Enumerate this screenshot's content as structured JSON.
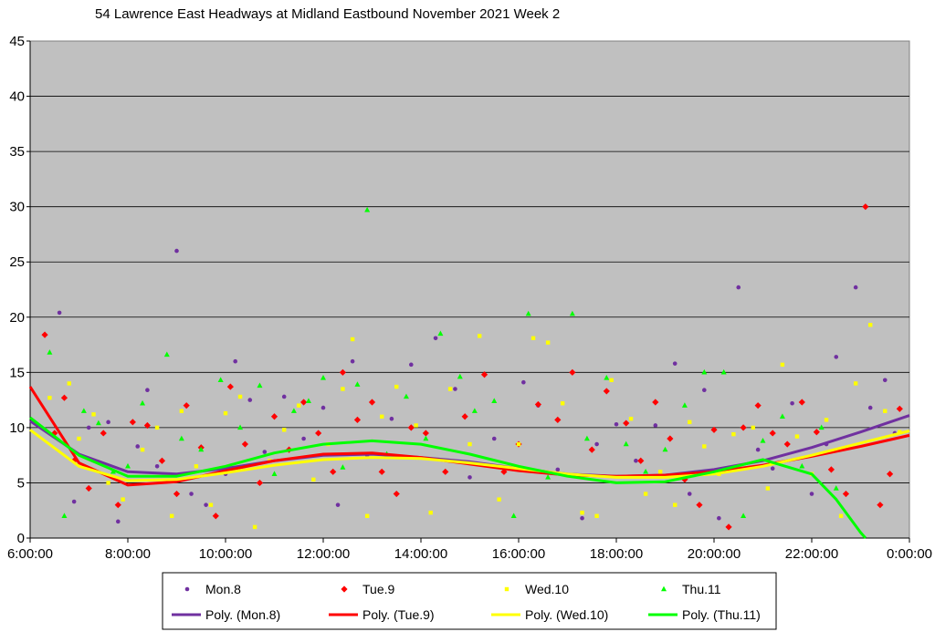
{
  "chart_data": {
    "type": "scatter",
    "title": "54 Lawrence East Headways at Midland Eastbound November 2021  Week 2",
    "xlabel": "",
    "ylabel": "",
    "xlim": [
      6,
      24
    ],
    "ylim": [
      0,
      45
    ],
    "x_ticks": [
      6,
      8,
      10,
      12,
      14,
      16,
      18,
      20,
      22,
      24
    ],
    "x_tick_labels": [
      "6:00:00",
      "8:00:00",
      "10:00:00",
      "12:00:00",
      "14:00:00",
      "16:00:00",
      "18:00:00",
      "20:00:00",
      "22:00:00",
      "0:00:00"
    ],
    "y_ticks": [
      0,
      5,
      10,
      15,
      20,
      25,
      30,
      35,
      40,
      45
    ],
    "y_tick_labels": [
      "0",
      "5",
      "10",
      "15",
      "20",
      "25",
      "30",
      "35",
      "40",
      "45"
    ],
    "grid": true,
    "plot_background": "#C0C0C0",
    "legend_position": "bottom",
    "series": [
      {
        "name": "Mon.8",
        "marker": "circle",
        "color": "#7030A0",
        "points": [
          [
            6.6,
            20.4
          ],
          [
            6.9,
            3.3
          ],
          [
            7.2,
            10.0
          ],
          [
            7.6,
            10.5
          ],
          [
            7.8,
            1.5
          ],
          [
            8.2,
            8.3
          ],
          [
            8.4,
            13.4
          ],
          [
            8.6,
            6.5
          ],
          [
            9.0,
            26.0
          ],
          [
            9.3,
            4.0
          ],
          [
            9.6,
            3.0
          ],
          [
            10.0,
            5.8
          ],
          [
            10.2,
            16.0
          ],
          [
            10.5,
            12.5
          ],
          [
            10.8,
            7.8
          ],
          [
            11.2,
            12.8
          ],
          [
            11.6,
            9.0
          ],
          [
            12.0,
            11.8
          ],
          [
            12.3,
            3.0
          ],
          [
            12.6,
            16.0
          ],
          [
            12.9,
            7.5
          ],
          [
            13.4,
            10.8
          ],
          [
            13.8,
            15.7
          ],
          [
            14.3,
            18.1
          ],
          [
            14.7,
            13.5
          ],
          [
            15.0,
            5.5
          ],
          [
            15.5,
            9.0
          ],
          [
            16.1,
            14.1
          ],
          [
            16.4,
            12.0
          ],
          [
            16.8,
            6.2
          ],
          [
            17.3,
            1.8
          ],
          [
            17.6,
            8.5
          ],
          [
            18.0,
            10.3
          ],
          [
            18.4,
            7.0
          ],
          [
            18.8,
            10.2
          ],
          [
            19.2,
            15.8
          ],
          [
            19.5,
            4.0
          ],
          [
            19.8,
            13.4
          ],
          [
            20.1,
            1.8
          ],
          [
            20.5,
            22.7
          ],
          [
            20.9,
            8.0
          ],
          [
            21.2,
            6.3
          ],
          [
            21.6,
            12.2
          ],
          [
            22.0,
            4.0
          ],
          [
            22.3,
            8.5
          ],
          [
            22.5,
            16.4
          ],
          [
            22.9,
            22.7
          ],
          [
            23.2,
            11.8
          ],
          [
            23.5,
            14.3
          ],
          [
            23.7,
            9.5
          ]
        ]
      },
      {
        "name": "Tue.9",
        "marker": "diamond",
        "color": "#FF0000",
        "points": [
          [
            6.3,
            18.4
          ],
          [
            6.5,
            9.5
          ],
          [
            6.7,
            12.7
          ],
          [
            6.9,
            7.0
          ],
          [
            7.2,
            4.5
          ],
          [
            7.5,
            9.5
          ],
          [
            7.8,
            3.0
          ],
          [
            8.1,
            10.5
          ],
          [
            8.4,
            10.2
          ],
          [
            8.7,
            7.0
          ],
          [
            9.0,
            4.0
          ],
          [
            9.2,
            12.0
          ],
          [
            9.5,
            8.2
          ],
          [
            9.8,
            2.0
          ],
          [
            10.1,
            13.7
          ],
          [
            10.4,
            8.5
          ],
          [
            10.7,
            5.0
          ],
          [
            11.0,
            11.0
          ],
          [
            11.3,
            8.0
          ],
          [
            11.6,
            12.3
          ],
          [
            11.9,
            9.5
          ],
          [
            12.2,
            6.0
          ],
          [
            12.4,
            15.0
          ],
          [
            12.7,
            10.7
          ],
          [
            13.0,
            12.3
          ],
          [
            13.2,
            6.0
          ],
          [
            13.5,
            4.0
          ],
          [
            13.8,
            10.0
          ],
          [
            14.1,
            9.5
          ],
          [
            14.5,
            6.0
          ],
          [
            14.9,
            11.0
          ],
          [
            15.3,
            14.8
          ],
          [
            15.7,
            6.0
          ],
          [
            16.0,
            8.5
          ],
          [
            16.4,
            12.1
          ],
          [
            16.8,
            10.7
          ],
          [
            17.1,
            15.0
          ],
          [
            17.5,
            8.0
          ],
          [
            17.8,
            13.3
          ],
          [
            18.2,
            10.4
          ],
          [
            18.5,
            7.0
          ],
          [
            18.8,
            12.3
          ],
          [
            19.1,
            9.0
          ],
          [
            19.4,
            5.3
          ],
          [
            19.7,
            3.0
          ],
          [
            20.0,
            9.8
          ],
          [
            20.3,
            1.0
          ],
          [
            20.6,
            10.0
          ],
          [
            20.9,
            12.0
          ],
          [
            21.2,
            9.5
          ],
          [
            21.5,
            8.5
          ],
          [
            21.8,
            12.3
          ],
          [
            22.1,
            9.6
          ],
          [
            22.4,
            6.2
          ],
          [
            22.7,
            4.0
          ],
          [
            23.1,
            30.0
          ],
          [
            23.4,
            3.0
          ],
          [
            23.6,
            5.8
          ],
          [
            23.8,
            11.7
          ]
        ]
      },
      {
        "name": "Wed.10",
        "marker": "square",
        "color": "#FFFF00",
        "points": [
          [
            6.4,
            12.7
          ],
          [
            6.8,
            14.0
          ],
          [
            7.0,
            9.0
          ],
          [
            7.3,
            11.2
          ],
          [
            7.6,
            5.0
          ],
          [
            7.9,
            3.5
          ],
          [
            8.3,
            8.0
          ],
          [
            8.6,
            10.0
          ],
          [
            8.9,
            2.0
          ],
          [
            9.1,
            11.5
          ],
          [
            9.4,
            6.5
          ],
          [
            9.7,
            3.0
          ],
          [
            10.0,
            11.3
          ],
          [
            10.3,
            12.8
          ],
          [
            10.6,
            1.0
          ],
          [
            10.9,
            7.0
          ],
          [
            11.2,
            9.8
          ],
          [
            11.5,
            12.0
          ],
          [
            11.8,
            5.3
          ],
          [
            12.1,
            8.5
          ],
          [
            12.4,
            13.5
          ],
          [
            12.6,
            18.0
          ],
          [
            12.9,
            2.0
          ],
          [
            13.2,
            11.0
          ],
          [
            13.5,
            13.7
          ],
          [
            13.9,
            10.2
          ],
          [
            14.2,
            2.3
          ],
          [
            14.6,
            13.5
          ],
          [
            15.0,
            8.5
          ],
          [
            15.2,
            18.3
          ],
          [
            15.6,
            3.5
          ],
          [
            16.0,
            8.5
          ],
          [
            16.3,
            18.1
          ],
          [
            16.6,
            17.7
          ],
          [
            16.9,
            12.2
          ],
          [
            17.3,
            2.3
          ],
          [
            17.6,
            2.0
          ],
          [
            17.9,
            14.3
          ],
          [
            18.3,
            10.8
          ],
          [
            18.6,
            4.0
          ],
          [
            18.9,
            6.0
          ],
          [
            19.2,
            3.0
          ],
          [
            19.5,
            10.5
          ],
          [
            19.8,
            8.3
          ],
          [
            20.1,
            5.8
          ],
          [
            20.4,
            9.4
          ],
          [
            20.8,
            10.0
          ],
          [
            21.1,
            4.5
          ],
          [
            21.4,
            15.7
          ],
          [
            21.7,
            9.2
          ],
          [
            22.0,
            5.8
          ],
          [
            22.3,
            10.7
          ],
          [
            22.6,
            2.0
          ],
          [
            22.9,
            14.0
          ],
          [
            23.2,
            19.3
          ],
          [
            23.5,
            11.5
          ],
          [
            23.8,
            9.6
          ]
        ]
      },
      {
        "name": "Thu.11",
        "marker": "triangle",
        "color": "#00FF00",
        "points": [
          [
            6.4,
            16.8
          ],
          [
            6.7,
            2.0
          ],
          [
            7.1,
            11.5
          ],
          [
            7.4,
            10.4
          ],
          [
            7.7,
            6.0
          ],
          [
            8.0,
            6.5
          ],
          [
            8.3,
            12.2
          ],
          [
            8.8,
            16.6
          ],
          [
            9.1,
            9.0
          ],
          [
            9.5,
            8.0
          ],
          [
            9.9,
            14.3
          ],
          [
            10.3,
            10.0
          ],
          [
            10.7,
            13.8
          ],
          [
            11.0,
            5.8
          ],
          [
            11.4,
            11.5
          ],
          [
            11.7,
            12.4
          ],
          [
            12.0,
            14.5
          ],
          [
            12.4,
            6.4
          ],
          [
            12.7,
            13.9
          ],
          [
            12.9,
            29.7
          ],
          [
            13.3,
            7.6
          ],
          [
            13.7,
            12.8
          ],
          [
            14.1,
            9.0
          ],
          [
            14.4,
            18.5
          ],
          [
            14.8,
            14.6
          ],
          [
            15.1,
            11.5
          ],
          [
            15.5,
            12.4
          ],
          [
            15.9,
            2.0
          ],
          [
            16.2,
            20.3
          ],
          [
            16.6,
            5.5
          ],
          [
            17.1,
            20.3
          ],
          [
            17.4,
            9.0
          ],
          [
            17.8,
            14.5
          ],
          [
            18.2,
            8.5
          ],
          [
            18.6,
            6.0
          ],
          [
            19.0,
            8.0
          ],
          [
            19.4,
            12.0
          ],
          [
            19.8,
            15.0
          ],
          [
            20.2,
            15.0
          ],
          [
            20.6,
            2.0
          ],
          [
            21.0,
            8.8
          ],
          [
            21.4,
            11.0
          ],
          [
            21.8,
            6.5
          ],
          [
            22.2,
            10.0
          ],
          [
            22.5,
            4.5
          ]
        ]
      },
      {
        "name": "Poly. (Mon.8)",
        "type": "line",
        "color": "#7030A0",
        "x": [
          6,
          7,
          8,
          9,
          10,
          11,
          12,
          13,
          14,
          15,
          16,
          17,
          18,
          19,
          20,
          21,
          22,
          23,
          24
        ],
        "y": [
          10.6,
          7.6,
          6.0,
          5.8,
          6.3,
          7.0,
          7.5,
          7.6,
          7.3,
          6.9,
          6.3,
          5.8,
          5.6,
          5.7,
          6.2,
          7.0,
          8.2,
          9.6,
          11.1
        ]
      },
      {
        "name": "Poly. (Tue.9)",
        "type": "line",
        "color": "#FF0000",
        "x": [
          6,
          7,
          8,
          9,
          10,
          11,
          12,
          13,
          14,
          15,
          16,
          17,
          18,
          19,
          20,
          21,
          22,
          23,
          24
        ],
        "y": [
          13.7,
          6.8,
          4.8,
          5.1,
          6.1,
          7.0,
          7.6,
          7.7,
          7.3,
          6.7,
          6.1,
          5.7,
          5.6,
          5.7,
          6.0,
          6.6,
          7.4,
          8.3,
          9.3
        ]
      },
      {
        "name": "Poly. (Wed.10)",
        "type": "line",
        "color": "#FFFF00",
        "x": [
          6,
          7,
          8,
          9,
          10,
          11,
          12,
          13,
          14,
          15,
          16,
          17,
          18,
          19,
          20,
          21,
          22,
          23,
          24
        ],
        "y": [
          9.8,
          6.5,
          5.2,
          5.3,
          5.9,
          6.6,
          7.1,
          7.3,
          7.2,
          6.8,
          6.3,
          5.8,
          5.5,
          5.5,
          5.8,
          6.5,
          7.5,
          8.6,
          9.7
        ]
      },
      {
        "name": "Poly. (Thu.11)",
        "type": "line",
        "color": "#00FF00",
        "x": [
          6,
          7,
          8,
          9,
          10,
          11,
          12,
          13,
          14,
          15,
          16,
          17,
          18,
          19,
          20,
          21,
          22,
          22.5,
          23,
          23.1
        ],
        "y": [
          10.9,
          7.5,
          5.6,
          5.6,
          6.5,
          7.7,
          8.5,
          8.8,
          8.5,
          7.6,
          6.5,
          5.6,
          5.0,
          5.1,
          6.0,
          7.1,
          5.8,
          3.5,
          0.5,
          0
        ]
      }
    ]
  }
}
